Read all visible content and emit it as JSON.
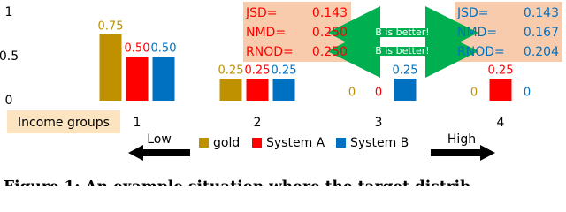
{
  "chart_data": {
    "type": "bar",
    "categories": [
      "1",
      "2",
      "3",
      "4"
    ],
    "x_label": "Income groups",
    "series": [
      {
        "name": "gold",
        "color": "#bf9000",
        "values": [
          0.75,
          0.25,
          0,
          0
        ],
        "value_labels": [
          "0.75",
          "0.25",
          "0",
          "0"
        ]
      },
      {
        "name": "System A",
        "color": "#ff0000",
        "values": [
          0.5,
          0.25,
          0,
          0.25
        ],
        "value_labels": [
          "0.50",
          "0.25",
          "0",
          "0.25"
        ]
      },
      {
        "name": "System B",
        "color": "#0070c0",
        "values": [
          0.5,
          0.25,
          0.25,
          0
        ],
        "value_labels": [
          "0.50",
          "0.25",
          "0.25",
          "0"
        ]
      }
    ],
    "ylim": [
      0,
      1
    ],
    "yticks": [
      0,
      0.5,
      1
    ],
    "grid": false,
    "metric_boxes": [
      {
        "color": "#ff0000",
        "labels": [
          "JSD=",
          "NMD=",
          "RNOD="
        ],
        "values": [
          0.143,
          0.25,
          0.25
        ],
        "value_labels": [
          "0.143",
          "0.250",
          "0.250"
        ]
      },
      {
        "color": "#0070c0",
        "labels": [
          "JSD=",
          "NMD=",
          "RNOD="
        ],
        "values": [
          0.143,
          0.167,
          0.204
        ],
        "value_labels": [
          "0.143",
          "0.167",
          "0.204"
        ]
      }
    ],
    "comparison_labels": [
      "B is better!",
      "B is better!"
    ],
    "low_label": "Low",
    "high_label": "High",
    "caption": "Figure 1: An example situation where the target distrib"
  }
}
